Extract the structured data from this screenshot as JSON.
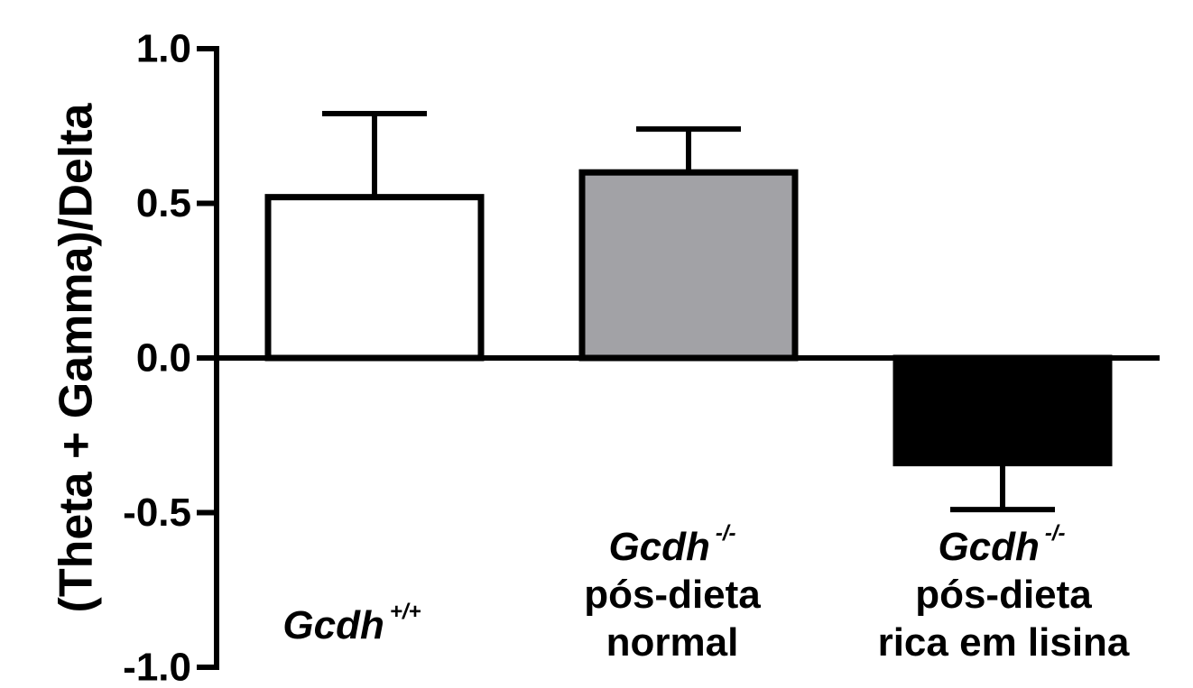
{
  "chart_data": {
    "type": "bar",
    "title": "",
    "xlabel": "",
    "ylabel": "(Theta + Gamma)/Delta",
    "ylim": [
      -1.0,
      1.0
    ],
    "yticks": [
      1.0,
      0.5,
      0.0,
      -0.5,
      -1.0
    ],
    "ytick_labels": [
      "1.0",
      "0.5",
      "0.0",
      "-0.5",
      "-1.0"
    ],
    "grid": false,
    "categories": [
      {
        "name": "Gcdh",
        "superscript": "+/+",
        "lines": []
      },
      {
        "name": "Gcdh",
        "superscript": "-/-",
        "lines": [
          "pós-dieta",
          "normal"
        ]
      },
      {
        "name": "Gcdh",
        "superscript": "-/-",
        "lines": [
          "pós-dieta",
          "rica em lisina"
        ]
      }
    ],
    "values": [
      0.52,
      0.6,
      -0.34
    ],
    "errors": [
      0.27,
      0.14,
      0.15
    ],
    "bar_colors": [
      "#ffffff",
      "#a2a2a6",
      "#000000"
    ]
  }
}
